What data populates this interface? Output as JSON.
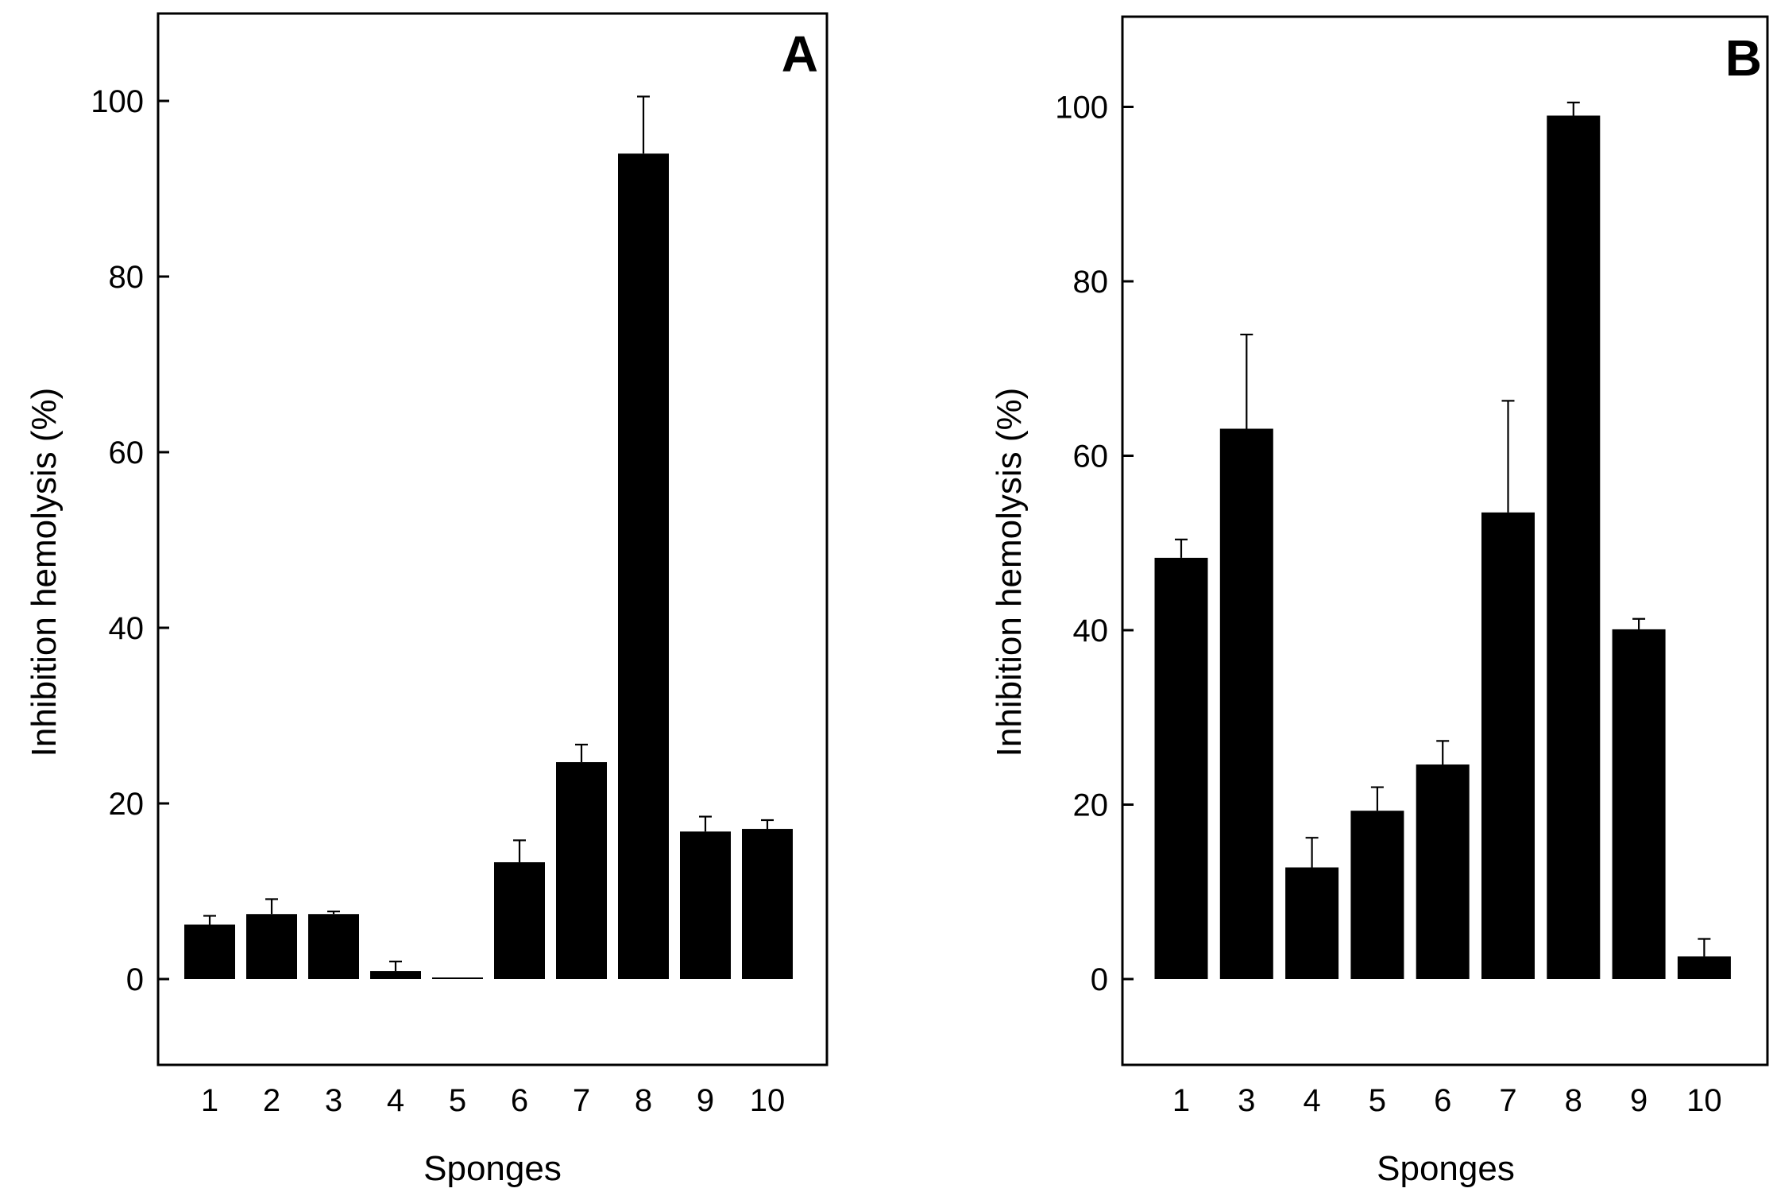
{
  "chart_data": [
    {
      "panel_label": "A",
      "type": "bar",
      "xlabel": "Sponges",
      "ylabel": "Inhibition hemolysis (%)",
      "ylim": [
        -10,
        110
      ],
      "yticks": [
        "0",
        "20",
        "40",
        "60",
        "80",
        "100"
      ],
      "categories": [
        "1",
        "2",
        "3",
        "4",
        "5",
        "6",
        "7",
        "8",
        "9",
        "10"
      ],
      "values": [
        6.2,
        7.4,
        7.4,
        0.9,
        0,
        13.3,
        24.7,
        94,
        16.8,
        17.1
      ],
      "errors": [
        1.0,
        1.7,
        0.3,
        1.1,
        0,
        2.5,
        2.0,
        6.5,
        1.7,
        1.0
      ],
      "grid": false,
      "legend": "none"
    },
    {
      "panel_label": "B",
      "type": "bar",
      "xlabel": "Sponges",
      "ylabel": "Inhibition hemolysis (%)",
      "ylim": [
        -10,
        110
      ],
      "yticks": [
        "0",
        "20",
        "40",
        "60",
        "80",
        "100"
      ],
      "categories": [
        "1",
        "3",
        "4",
        "5",
        "6",
        "7",
        "8",
        "9",
        "10"
      ],
      "values": [
        48.3,
        63.1,
        12.8,
        19.3,
        24.6,
        53.5,
        99,
        40.1,
        2.6
      ],
      "errors": [
        2.1,
        10.8,
        3.4,
        2.7,
        2.7,
        12.8,
        1.5,
        1.2,
        2.0
      ],
      "grid": false,
      "legend": "none"
    }
  ]
}
